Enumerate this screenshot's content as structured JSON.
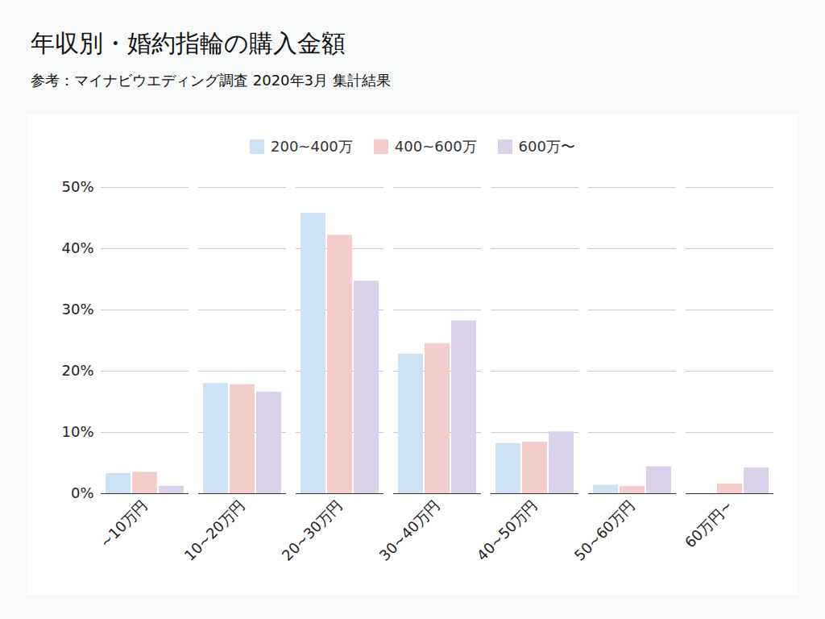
{
  "chart_data": {
    "type": "bar",
    "title": "年収別・婚約指輪の購入金額",
    "subtitle": "参考：マイナビウエディング調査 2020年3月 集計結果",
    "categories": [
      "~10万円",
      "10~20万円",
      "20~30万円",
      "30~40万円",
      "40~50万円",
      "50~60万円",
      "60万円~"
    ],
    "series": [
      {
        "name": "200~400万",
        "color": "#cfe2f3",
        "values": [
          3.3,
          18.0,
          45.8,
          22.8,
          8.2,
          1.4,
          0
        ]
      },
      {
        "name": "400~600万",
        "color": "#f4cccc",
        "values": [
          3.5,
          17.8,
          42.2,
          24.5,
          8.4,
          1.2,
          1.6
        ]
      },
      {
        "name": "600万〜",
        "color": "#d9d2e9",
        "values": [
          1.2,
          16.6,
          34.7,
          28.2,
          10.1,
          4.4,
          4.2
        ]
      }
    ],
    "ylim": [
      0,
      50
    ],
    "yticks": [
      {
        "value": 0,
        "label": "0%"
      },
      {
        "value": 10,
        "label": "10%"
      },
      {
        "value": 20,
        "label": "20%"
      },
      {
        "value": 30,
        "label": "30%"
      },
      {
        "value": 40,
        "label": "40%"
      },
      {
        "value": 50,
        "label": "50%"
      }
    ],
    "grid": true,
    "legend": "top"
  }
}
